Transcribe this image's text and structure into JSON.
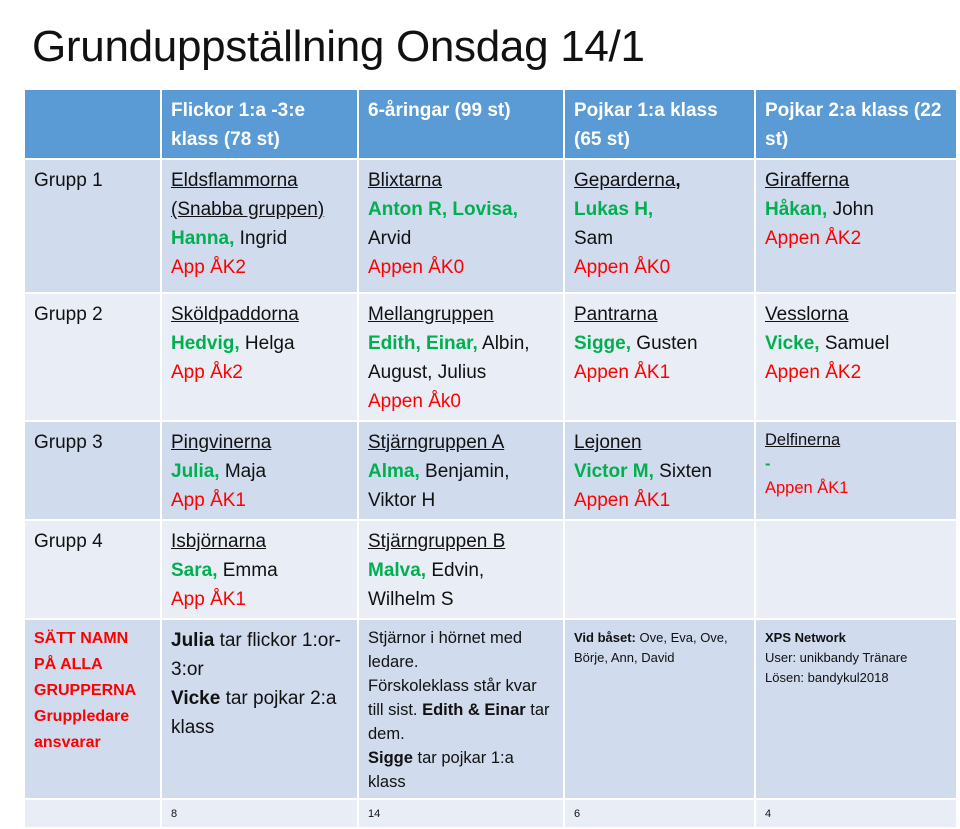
{
  "title": "Grunduppställning Onsdag 14/1",
  "colors": {
    "header": "#5B9BD5",
    "green": "#00B050",
    "red": "#FF0000",
    "row_dark": "#D0DBED",
    "row_light": "#E9EEF6"
  },
  "headers": [
    "",
    "Flickor 1:a -3:e klass (78 st)",
    "6-åringar (99 st)",
    "Pojkar 1:a klass (65 st)",
    "Pojkar 2:a klass (22 st)"
  ],
  "rows": [
    {
      "cells": [
        [
          [
            {
              "t": "Grupp 1",
              "s": ""
            }
          ]
        ],
        [
          [
            {
              "t": "Eldsflammorna",
              "s": "u"
            }
          ],
          [
            {
              "t": "(Snabba gruppen)",
              "s": "u"
            }
          ],
          [
            {
              "t": "Hanna,",
              "s": "g"
            },
            {
              "t": " Ingrid",
              "s": ""
            }
          ],
          [
            {
              "t": "App ÅK2",
              "s": "r"
            }
          ]
        ],
        [
          [
            {
              "t": "Blixtarna",
              "s": "u"
            }
          ],
          [
            {
              "t": "Anton R, Lovisa,",
              "s": "g"
            }
          ],
          [
            {
              "t": "Arvid",
              "s": ""
            }
          ],
          [
            {
              "t": "Appen ÅK0",
              "s": "r"
            }
          ]
        ],
        [
          [
            {
              "t": "Geparderna",
              "s": "u"
            },
            {
              "t": ",",
              "s": "b"
            }
          ],
          [
            {
              "t": "Lukas H,",
              "s": "g"
            }
          ],
          [
            {
              "t": "Sam",
              "s": ""
            }
          ],
          [
            {
              "t": "Appen ÅK0",
              "s": "r"
            }
          ]
        ],
        [
          [
            {
              "t": "Girafferna",
              "s": "u"
            }
          ],
          [
            {
              "t": "Håkan,",
              "s": "g"
            },
            {
              "t": " John",
              "s": ""
            }
          ],
          [
            {
              "t": "Appen ÅK2",
              "s": "r"
            }
          ]
        ]
      ]
    },
    {
      "cells": [
        [
          [
            {
              "t": "Grupp 2",
              "s": ""
            }
          ]
        ],
        [
          [
            {
              "t": "Sköldpaddorna",
              "s": "u"
            }
          ],
          [
            {
              "t": "Hedvig,",
              "s": "g"
            },
            {
              "t": " Helga",
              "s": ""
            }
          ],
          [
            {
              "t": "App Åk2",
              "s": "r"
            }
          ]
        ],
        [
          [
            {
              "t": "Mellangruppen",
              "s": "u"
            }
          ],
          [
            {
              "t": "Edith, Einar,",
              "s": "g"
            },
            {
              "t": " Albin,",
              "s": ""
            }
          ],
          [
            {
              "t": "August, Julius",
              "s": ""
            }
          ],
          [
            {
              "t": "Appen Åk0",
              "s": "r"
            }
          ]
        ],
        [
          [
            {
              "t": "Pantrarna",
              "s": "u"
            }
          ],
          [
            {
              "t": "Sigge,",
              "s": "g"
            },
            {
              "t": " Gusten",
              "s": ""
            }
          ],
          [
            {
              "t": "Appen ÅK1",
              "s": "r"
            }
          ]
        ],
        [
          [
            {
              "t": "Vesslorna",
              "s": "u"
            }
          ],
          [
            {
              "t": "Vicke,",
              "s": "g"
            },
            {
              "t": " Samuel",
              "s": ""
            }
          ],
          [
            {
              "t": "Appen ÅK2",
              "s": "r"
            }
          ]
        ]
      ]
    },
    {
      "cells": [
        [
          [
            {
              "t": "Grupp 3",
              "s": ""
            }
          ]
        ],
        [
          [
            {
              "t": "Pingvinerna",
              "s": "u"
            }
          ],
          [
            {
              "t": "Julia,",
              "s": "g"
            },
            {
              "t": " Maja",
              "s": ""
            }
          ],
          [
            {
              "t": "App ÅK1",
              "s": "r"
            }
          ]
        ],
        [
          [
            {
              "t": "Stjärngruppen A",
              "s": "u"
            }
          ],
          [
            {
              "t": "Alma,",
              "s": "g"
            },
            {
              "t": " Benjamin,",
              "s": ""
            }
          ],
          [
            {
              "t": "Viktor H",
              "s": ""
            }
          ]
        ],
        [
          [
            {
              "t": "Lejonen",
              "s": "u"
            }
          ],
          [
            {
              "t": "Victor M,",
              "s": "g"
            },
            {
              "t": " Sixten",
              "s": ""
            }
          ],
          [
            {
              "t": "Appen ÅK1",
              "s": "r"
            }
          ]
        ],
        [
          [
            {
              "t": "Delfinerna",
              "s": "u"
            }
          ],
          [
            {
              "t": "-",
              "s": "g"
            }
          ],
          [
            {
              "t": "Appen ÅK1",
              "s": "r"
            }
          ]
        ]
      ]
    },
    {
      "cells": [
        [
          [
            {
              "t": "Grupp 4",
              "s": ""
            }
          ]
        ],
        [
          [
            {
              "t": "Isbjörnarna",
              "s": "u"
            }
          ],
          [
            {
              "t": "Sara,",
              "s": "g"
            },
            {
              "t": " Emma",
              "s": ""
            }
          ],
          [
            {
              "t": "App ÅK1",
              "s": "r"
            }
          ]
        ],
        [
          [
            {
              "t": "Stjärngruppen B",
              "s": "u"
            }
          ],
          [
            {
              "t": "Malva,",
              "s": "g"
            },
            {
              "t": " Edvin,",
              "s": ""
            }
          ],
          [
            {
              "t": "Wilhelm S",
              "s": ""
            }
          ]
        ],
        [],
        []
      ]
    },
    {
      "cells": [
        [
          [
            {
              "t": "SÄTT NAMN",
              "s": "rb"
            }
          ],
          [
            {
              "t": "PÅ ALLA",
              "s": "rb"
            }
          ],
          [
            {
              "t": "GRUPPERNA",
              "s": "rb"
            }
          ],
          [
            {
              "t": "Gruppledare",
              "s": "rb"
            }
          ],
          [
            {
              "t": "ansvarar",
              "s": "rb"
            }
          ]
        ],
        [
          [
            {
              "t": "Julia",
              "s": "b"
            },
            {
              "t": " tar flickor 1:or-",
              "s": ""
            }
          ],
          [
            {
              "t": "3:or",
              "s": ""
            }
          ],
          [
            {
              "t": "Vicke",
              "s": "b"
            },
            {
              "t": " tar pojkar 2:a",
              "s": ""
            }
          ],
          [
            {
              "t": "klass",
              "s": ""
            }
          ]
        ],
        [
          [
            {
              "t": "Stjärnor i hörnet med",
              "s": ""
            }
          ],
          [
            {
              "t": "ledare.",
              "s": ""
            }
          ],
          [
            {
              "t": "Förskoleklass står kvar",
              "s": ""
            }
          ],
          [
            {
              "t": "till sist. ",
              "s": ""
            },
            {
              "t": "Edith & Einar",
              "s": "b"
            },
            {
              "t": " tar",
              "s": ""
            }
          ],
          [
            {
              "t": "dem.",
              "s": ""
            }
          ],
          [
            {
              "t": "Sigge",
              "s": "b"
            },
            {
              "t": " tar pojkar 1:a",
              "s": ""
            }
          ],
          [
            {
              "t": "klass",
              "s": ""
            }
          ]
        ],
        [
          [
            {
              "t": "Vid båset:",
              "s": "b"
            },
            {
              "t": " Ove, Eva, Ove,",
              "s": ""
            }
          ],
          [
            {
              "t": "Börje, Ann, David",
              "s": ""
            }
          ]
        ],
        [
          [
            {
              "t": "XPS Network",
              "s": "b"
            }
          ],
          [
            {
              "t": "User: unikbandy Tränare",
              "s": ""
            }
          ],
          [
            {
              "t": "Lösen: bandykul2018",
              "s": ""
            }
          ]
        ]
      ]
    },
    {
      "cells": [
        [],
        [
          [
            {
              "t": "8",
              "s": ""
            }
          ]
        ],
        [
          [
            {
              "t": "14",
              "s": ""
            }
          ]
        ],
        [
          [
            {
              "t": "6",
              "s": ""
            }
          ]
        ],
        [
          [
            {
              "t": "4",
              "s": ""
            }
          ]
        ]
      ]
    }
  ]
}
